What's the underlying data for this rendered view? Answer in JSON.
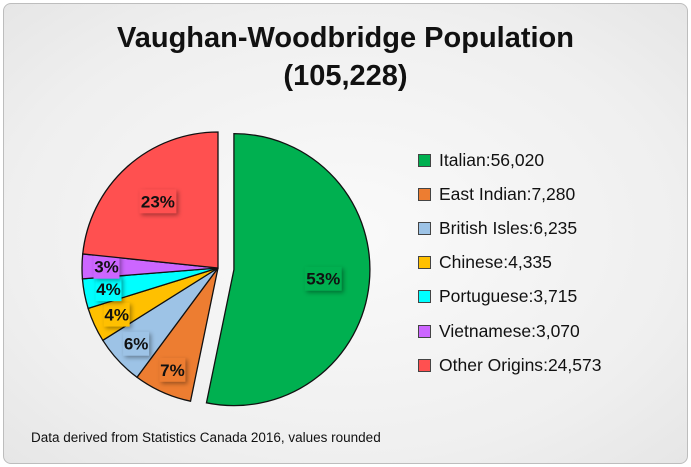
{
  "chart_data": {
    "type": "pie",
    "title": "Vaughan-Woodbridge Population",
    "subtitle": "(105,228)",
    "slices": [
      {
        "label": "Italian",
        "value": 56020,
        "value_text": "56,020",
        "pct": "53%",
        "color": "#00b050",
        "exploded": true
      },
      {
        "label": "East Indian",
        "value": 7280,
        "value_text": "7,280",
        "pct": "7%",
        "color": "#ed7d31"
      },
      {
        "label": "British Isles",
        "value": 6235,
        "value_text": "6,235",
        "pct": "6%",
        "color": "#9dc3e6"
      },
      {
        "label": "Chinese",
        "value": 4335,
        "value_text": "4,335",
        "pct": "4%",
        "color": "#ffc000"
      },
      {
        "label": "Portuguese",
        "value": 3715,
        "value_text": "3,715",
        "pct": "4%",
        "color": "#00ffff"
      },
      {
        "label": "Vietnamese",
        "value": 3070,
        "value_text": "3,070",
        "pct": "3%",
        "color": "#cc66ff"
      },
      {
        "label": "Other Origins",
        "value": 24573,
        "value_text": "24,573",
        "pct": "23%",
        "color": "#ff5050"
      }
    ],
    "legend_position": "right",
    "footnote": "Data derived from Statistics Canada 2016, values rounded"
  }
}
